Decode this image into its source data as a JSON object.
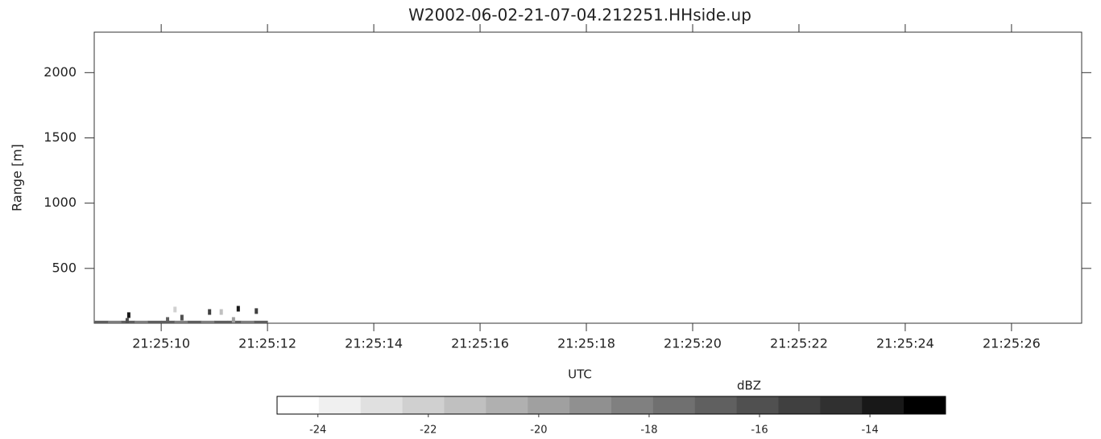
{
  "chart_data": {
    "type": "timeheight",
    "title": "W2002-06-02-21-07-04.212251.HHside.up",
    "xlabel": "UTC",
    "ylabel": "Range [m]",
    "xlim": [
      8.74,
      27.32
    ],
    "xticks": [
      {
        "value": 10,
        "label": "21:25:10"
      },
      {
        "value": 12,
        "label": "21:25:12"
      },
      {
        "value": 14,
        "label": "21:25:14"
      },
      {
        "value": 16,
        "label": "21:25:16"
      },
      {
        "value": 18,
        "label": "21:25:18"
      },
      {
        "value": 20,
        "label": "21:25:20"
      },
      {
        "value": 22,
        "label": "21:25:22"
      },
      {
        "value": 24,
        "label": "21:25:24"
      },
      {
        "value": 26,
        "label": "21:25:26"
      }
    ],
    "ylim": [
      80,
      2310
    ],
    "yticks": [
      500,
      1000,
      1500,
      2000
    ],
    "echoes": {
      "x": [
        9.36,
        9.39,
        10.12,
        10.26,
        10.39,
        10.91,
        11.13,
        11.36,
        11.45,
        11.79
      ],
      "y": [
        98,
        142,
        105,
        185,
        123,
        166,
        166,
        105,
        191,
        173
      ],
      "z": [
        -16,
        -14,
        -17,
        -22,
        -16,
        -15,
        -21,
        -20,
        -14,
        -15
      ]
    },
    "surface_echoes": {
      "x": [
        8.75,
        9.0,
        9.25,
        9.5,
        9.75,
        10.0,
        10.25,
        10.5,
        10.75,
        11.0,
        11.25,
        11.5,
        11.75
      ],
      "y": [
        90,
        90,
        90,
        90,
        90,
        90,
        90,
        90,
        90,
        90,
        90,
        90,
        90
      ],
      "z": [
        -17,
        -18,
        -17,
        -18,
        -17,
        -17,
        -18,
        -17,
        -18,
        -17,
        -17,
        -18,
        -17
      ]
    },
    "colorbar": {
      "label": "dBZ",
      "clim": [
        -24.74,
        -12.63
      ],
      "ticks": [
        -24,
        -22,
        -20,
        -18,
        -16,
        -14
      ],
      "colors": [
        "#ffffff",
        "#f0f0f0",
        "#e0e0e0",
        "#d0d0d0",
        "#c0c0c0",
        "#b0b0b0",
        "#a0a0a0",
        "#909090",
        "#808080",
        "#707070",
        "#606060",
        "#505050",
        "#404040",
        "#303030",
        "#181818",
        "#000000"
      ]
    }
  }
}
